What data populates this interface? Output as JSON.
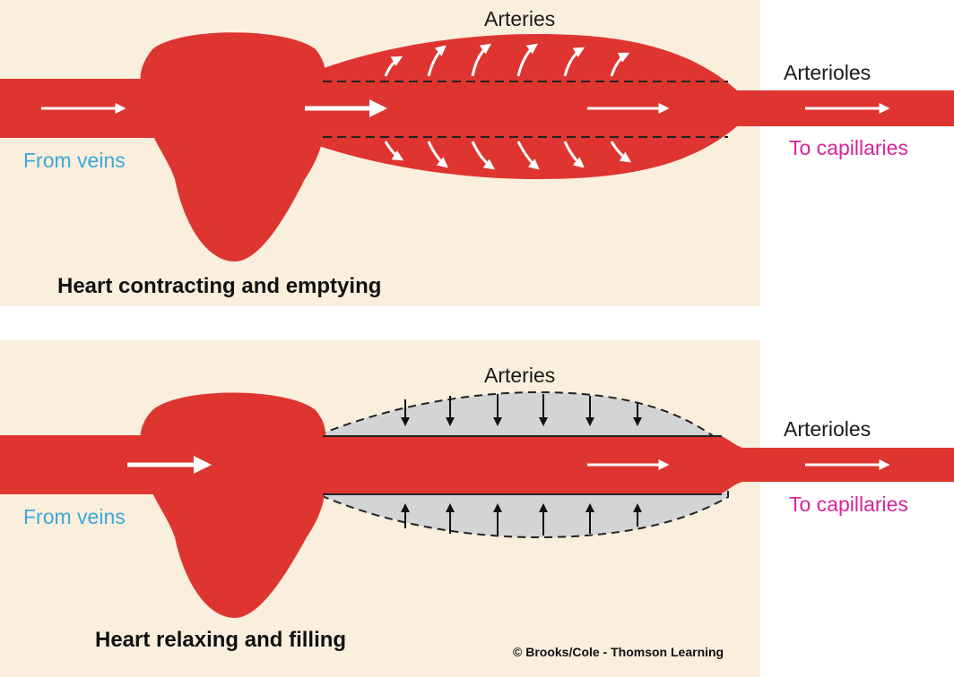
{
  "colors": {
    "blood": "#de3530",
    "background": "#faeedd",
    "relaxed_artery": "#d3d4d6",
    "from_veins_text": "#3aa9d8",
    "to_capillaries_text": "#d6249a"
  },
  "top_panel": {
    "arteries_label": "Arteries",
    "arterioles_label": "Arterioles",
    "from_veins_label": "From veins",
    "to_capillaries_label": "To capillaries",
    "caption": "Heart contracting and emptying"
  },
  "bottom_panel": {
    "arteries_label": "Arteries",
    "arterioles_label": "Arterioles",
    "from_veins_label": "From veins",
    "to_capillaries_label": "To capillaries",
    "caption": "Heart relaxing and filling"
  },
  "credit": "© Brooks/Cole - Thomson Learning"
}
